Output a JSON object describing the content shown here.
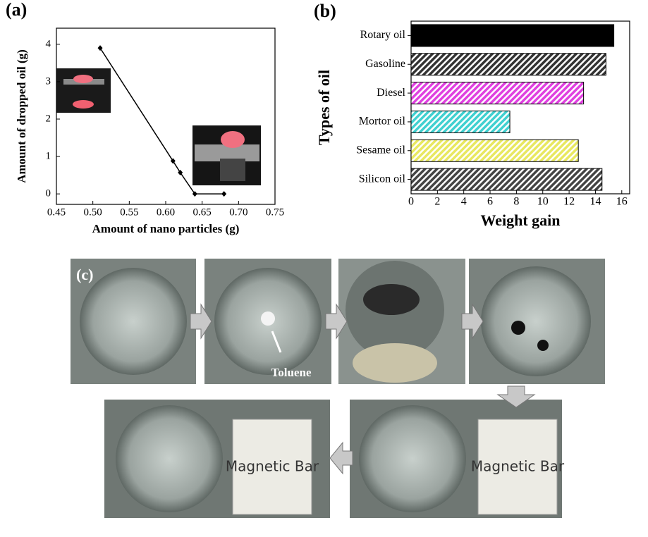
{
  "chart_data": [
    {
      "type": "line",
      "title": "(a)",
      "x_label": "Amount of nano particles (g)",
      "y_label": "Amount of dropped oil (g)",
      "x": [
        0.51,
        0.61,
        0.62,
        0.64,
        0.68
      ],
      "values": [
        3.9,
        0.88,
        0.57,
        0,
        0
      ],
      "color": "#000000",
      "xlim": [
        0.45,
        0.75
      ],
      "xticks": [
        0.45,
        {
          "value": 0.5,
          "label": "0.50"
        },
        0.55,
        {
          "value": 0.6,
          "label": "0.60"
        },
        0.65,
        {
          "value": 0.7,
          "label": "0.70"
        },
        0.75
      ],
      "ylim": [
        -0.28,
        4.43
      ],
      "yticks": [
        0,
        1,
        2,
        3,
        4
      ]
    },
    {
      "type": "hbar",
      "title": "(b)",
      "x_label": "Weight gain",
      "y_label": "Types of oil",
      "categories": [
        "Rotary oil",
        "Gasoline",
        "Diesel",
        "Mortor oil",
        "Sesame oil",
        "Silicon oil"
      ],
      "values": [
        15.4,
        14.8,
        13.1,
        7.5,
        12.7,
        14.5
      ],
      "colors": [
        "#000000",
        "#333333",
        "#e040e0",
        "#40d0d0",
        "#e8e860",
        "#444444"
      ],
      "xlim": [
        0,
        16.6
      ],
      "xticks": [
        0,
        2,
        4,
        6,
        8,
        10,
        12,
        14,
        16
      ]
    }
  ],
  "panel_c": {
    "label": "(c)",
    "annotation": "Toluene",
    "bar_label": "Magnetic Bar"
  }
}
